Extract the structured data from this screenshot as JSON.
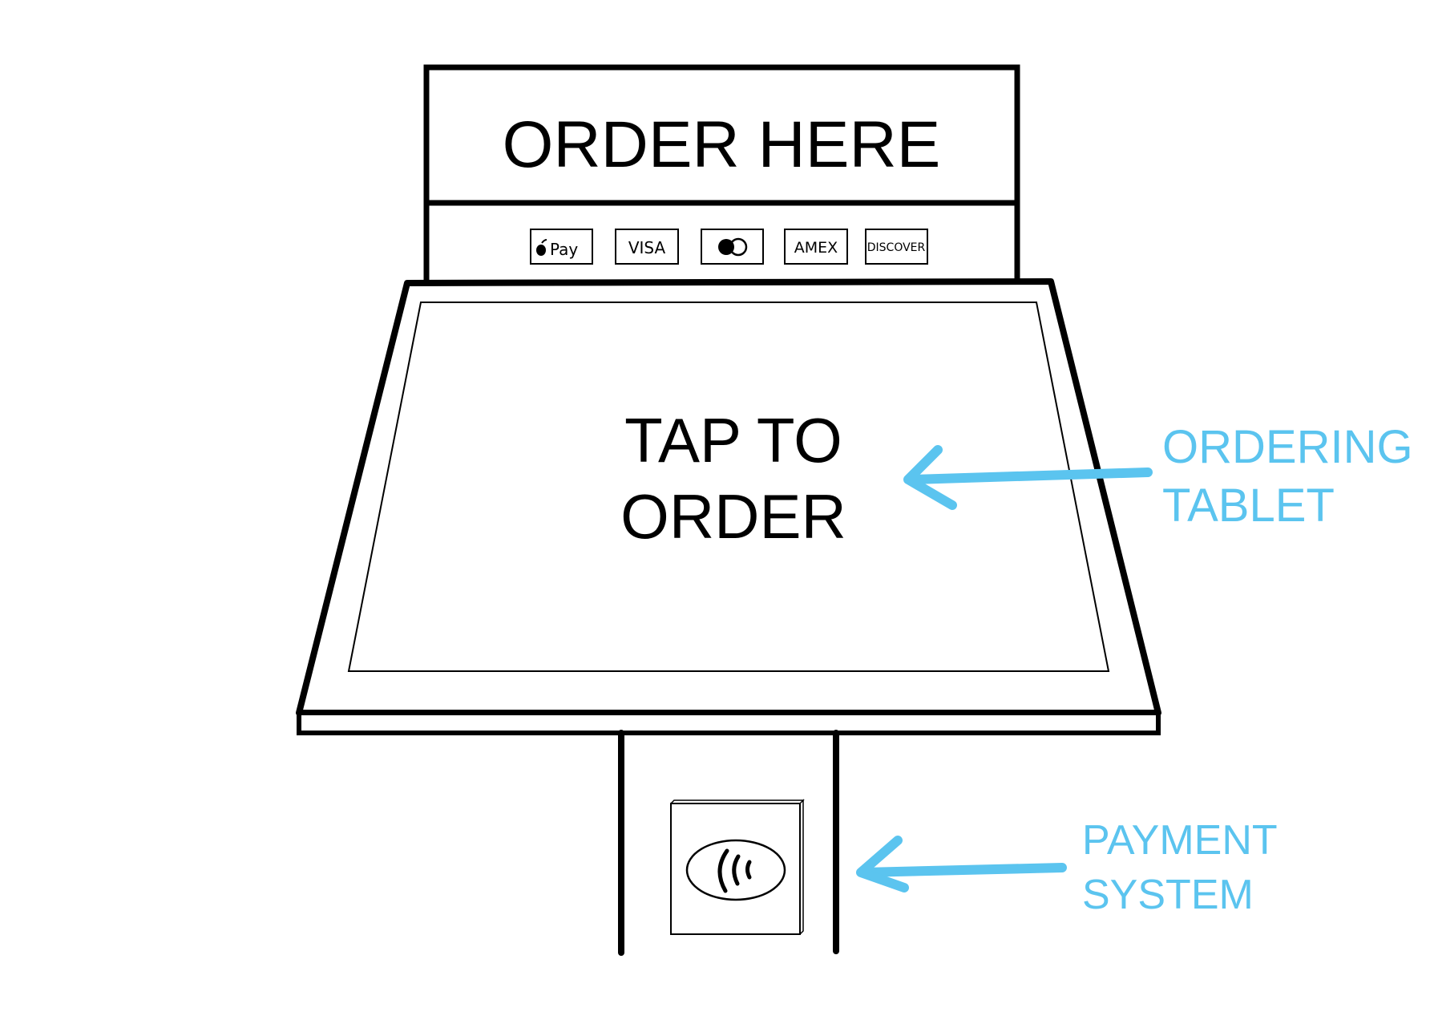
{
  "sign": {
    "title": "ORDER HERE"
  },
  "payment_logos": {
    "apple_pay": "Pay",
    "visa": "VISA",
    "amex": "AMEX",
    "discover": "DISCOVER"
  },
  "screen": {
    "line1": "TAP TO",
    "line2": "ORDER"
  },
  "labels": {
    "tablet_line1": "ORDERING",
    "tablet_line2": "TABLET",
    "payment_line1": "PAYMENT",
    "payment_line2": "SYSTEM"
  },
  "colors": {
    "ink": "#000000",
    "accent": "#5bc4ef"
  }
}
